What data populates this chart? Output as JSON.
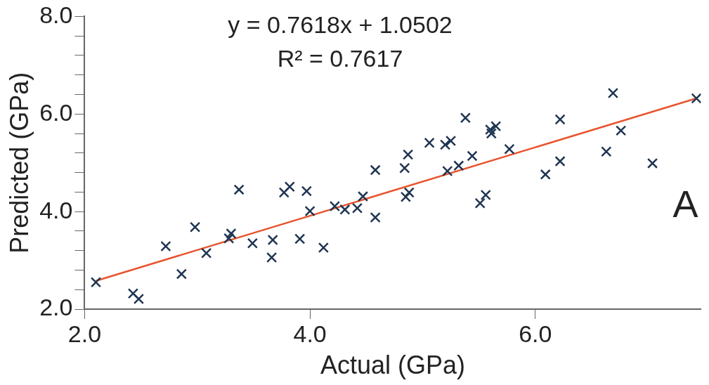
{
  "chart_data": {
    "type": "scatter",
    "xlabel": "Actual (GPa)",
    "ylabel": "Predicted (GPa)",
    "annotations": [
      "y = 0.7618x + 1.0502",
      "R² = 0.7617",
      "A"
    ],
    "xlim": [
      2,
      7.47
    ],
    "xticks": [
      {
        "value": 2,
        "label": "2.0"
      },
      {
        "value": 4,
        "label": "4.0"
      },
      {
        "value": 6,
        "label": "6.0"
      }
    ],
    "ylim": [
      2,
      8
    ],
    "yticks": [
      {
        "value": 2,
        "label": "2.0"
      },
      {
        "value": 2.4,
        "label": null
      },
      {
        "value": 2.8,
        "label": null
      },
      {
        "value": 3.2,
        "label": null
      },
      {
        "value": 3.6,
        "label": null
      },
      {
        "value": 4,
        "label": "4.0"
      },
      {
        "value": 4.4,
        "label": null
      },
      {
        "value": 4.8,
        "label": null
      },
      {
        "value": 5.2,
        "label": null
      },
      {
        "value": 5.6,
        "label": null
      },
      {
        "value": 6,
        "label": "6.0"
      },
      {
        "value": 6.4,
        "label": null
      },
      {
        "value": 6.8,
        "label": null
      },
      {
        "value": 7.2,
        "label": null
      },
      {
        "value": 7.6,
        "label": null
      },
      {
        "value": 8,
        "label": "8.0"
      }
    ],
    "grid": false,
    "legend": false,
    "marker": "cross",
    "series": [
      {
        "type": "scatter",
        "color": "#1f3552",
        "x": [
          2.1,
          2.43,
          2.48,
          2.72,
          2.86,
          2.98,
          3.08,
          3.28,
          3.3,
          3.37,
          3.49,
          3.67,
          3.66,
          3.77,
          3.82,
          3.97,
          4.0,
          3.91,
          4.12,
          4.22,
          4.31,
          4.42,
          4.47,
          4.58,
          4.58,
          4.84,
          4.87,
          4.85,
          4.88,
          5.06,
          5.2,
          5.25,
          5.22,
          5.32,
          5.38,
          5.44,
          5.51,
          5.56,
          5.6,
          5.65,
          5.61,
          5.77,
          6.09,
          6.22,
          6.22,
          6.63,
          6.69,
          6.76,
          7.04,
          7.43
        ],
        "values": [
          2.55,
          2.32,
          2.21,
          3.29,
          2.72,
          3.68,
          3.15,
          3.45,
          3.55,
          4.45,
          3.35,
          3.42,
          3.06,
          4.39,
          4.51,
          4.42,
          4.01,
          3.44,
          3.26,
          4.11,
          4.04,
          4.07,
          4.31,
          4.85,
          3.88,
          4.89,
          5.17,
          4.3,
          4.39,
          5.41,
          5.37,
          5.45,
          4.83,
          4.94,
          5.92,
          5.14,
          4.17,
          4.34,
          5.68,
          5.75,
          5.6,
          5.28,
          4.76,
          5.89,
          5.03,
          5.23,
          6.43,
          5.66,
          4.99,
          6.32
        ]
      },
      {
        "type": "line",
        "color": "#e8542e",
        "marker": "none",
        "x": [
          2.1,
          7.43
        ],
        "values": [
          2.58,
          6.32
        ]
      }
    ]
  }
}
